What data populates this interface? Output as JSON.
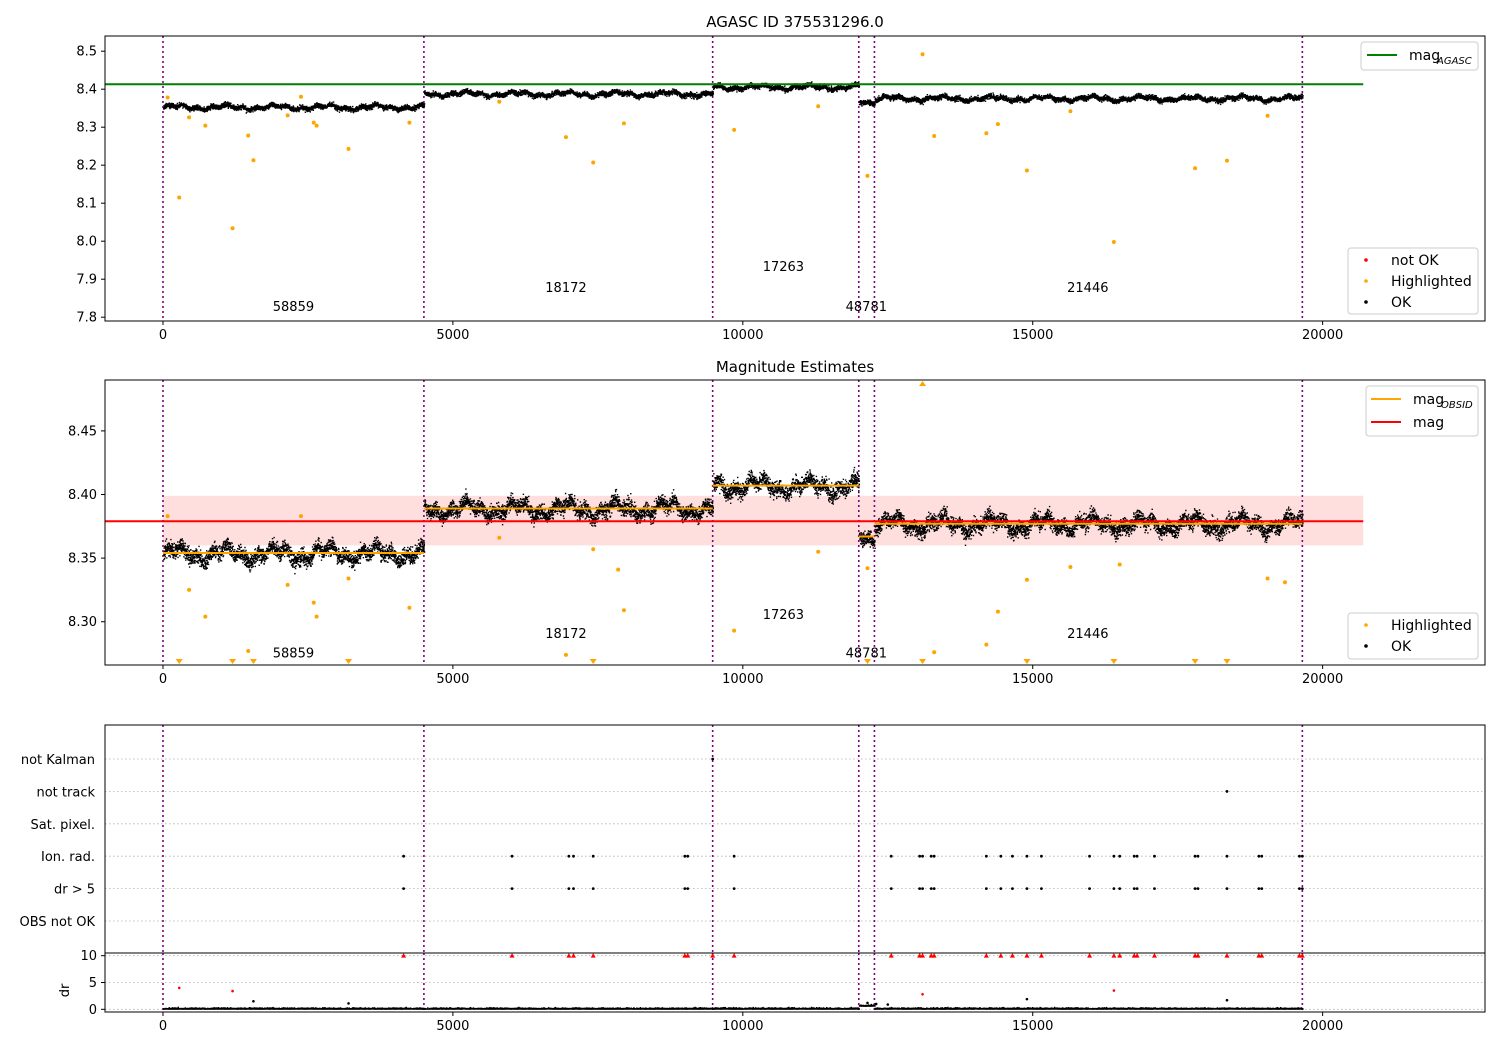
{
  "chart_data": [
    {
      "type": "scatter",
      "title": "AGASC ID 375531296.0",
      "ylim": [
        7.79,
        8.54
      ],
      "xlim": [
        -1000,
        22800
      ],
      "xticks": [
        0,
        5000,
        10000,
        15000,
        20000
      ],
      "yticks": [
        7.8,
        7.9,
        8.0,
        8.1,
        8.2,
        8.3,
        8.4,
        8.5
      ],
      "obsids": [
        {
          "label": "58859",
          "start": 0,
          "end": 4500,
          "label_x": 2250,
          "label_y": 7.83,
          "mean": 8.354
        },
        {
          "label": "18172",
          "start": 4500,
          "end": 9480,
          "label_x": 6950,
          "label_y": 7.88,
          "mean": 8.389
        },
        {
          "label": "17263",
          "start": 9480,
          "end": 12000,
          "label_x": 10700,
          "label_y": 7.935,
          "mean": 8.407
        },
        {
          "label": "48781",
          "start": 12000,
          "end": 12270,
          "label_x": 12130,
          "label_y": 7.83,
          "mean": 8.367
        },
        {
          "label": "21446",
          "start": 12270,
          "end": 19650,
          "label_x": 15950,
          "label_y": 7.88,
          "mean": 8.377
        }
      ],
      "mag_agasc": 8.413,
      "highlighted": [
        [
          80,
          8.378
        ],
        [
          280,
          8.115
        ],
        [
          450,
          8.326
        ],
        [
          730,
          8.304
        ],
        [
          1200,
          8.034
        ],
        [
          1470,
          8.278
        ],
        [
          1560,
          8.213
        ],
        [
          2150,
          8.331
        ],
        [
          2380,
          8.38
        ],
        [
          2600,
          8.312
        ],
        [
          2650,
          8.304
        ],
        [
          3200,
          8.243
        ],
        [
          4250,
          8.312
        ],
        [
          5800,
          8.367
        ],
        [
          6950,
          8.274
        ],
        [
          7420,
          8.207
        ],
        [
          7950,
          8.31
        ],
        [
          9850,
          8.293
        ],
        [
          11300,
          8.355
        ],
        [
          12150,
          8.172
        ],
        [
          13100,
          8.492
        ],
        [
          13300,
          8.277
        ],
        [
          14200,
          8.284
        ],
        [
          14400,
          8.308
        ],
        [
          14900,
          8.186
        ],
        [
          15650,
          8.342
        ],
        [
          16400,
          7.998
        ],
        [
          17800,
          8.192
        ],
        [
          18350,
          8.212
        ],
        [
          19050,
          8.33
        ]
      ],
      "series": [
        {
          "name": "not OK",
          "color": "#ff0000"
        },
        {
          "name": "Highlighted",
          "color": "#ffa500"
        },
        {
          "name": "OK",
          "color": "#000000"
        }
      ],
      "legend_lines": [
        {
          "name": "mag",
          "subscript": "AGASC",
          "color": "#008000"
        }
      ],
      "legend_points": [
        "not OK",
        "Highlighted",
        "OK"
      ]
    },
    {
      "type": "scatter",
      "title": "Magnitude Estimates",
      "ylim": [
        8.266,
        8.49
      ],
      "xlim": [
        -1000,
        22800
      ],
      "xticks": [
        0,
        5000,
        10000,
        15000,
        20000
      ],
      "yticks": [
        8.3,
        8.35,
        8.4,
        8.45
      ],
      "obsids": [
        {
          "label": "58859",
          "start": 0,
          "end": 4500,
          "label_x": 2250,
          "label_y": 8.276,
          "mean": 8.354
        },
        {
          "label": "18172",
          "start": 4500,
          "end": 9480,
          "label_x": 6950,
          "label_y": 8.291,
          "mean": 8.389
        },
        {
          "label": "17263",
          "start": 9480,
          "end": 12000,
          "label_x": 10700,
          "label_y": 8.306,
          "mean": 8.407
        },
        {
          "label": "48781",
          "start": 12000,
          "end": 12270,
          "label_x": 12130,
          "label_y": 8.276,
          "mean": 8.367
        },
        {
          "label": "21446",
          "start": 12270,
          "end": 19650,
          "label_x": 15950,
          "label_y": 8.291,
          "mean": 8.377
        }
      ],
      "mag": 8.379,
      "mag_band": [
        8.36,
        8.399
      ],
      "mag_line_range": [
        0,
        20700
      ],
      "highlighted": [
        [
          80,
          8.383
        ],
        [
          450,
          8.325
        ],
        [
          730,
          8.304
        ],
        [
          1470,
          8.277
        ],
        [
          2150,
          8.329
        ],
        [
          2380,
          8.383
        ],
        [
          2600,
          8.315
        ],
        [
          2650,
          8.304
        ],
        [
          3200,
          8.334
        ],
        [
          4250,
          8.311
        ],
        [
          5800,
          8.366
        ],
        [
          6950,
          8.274
        ],
        [
          7420,
          8.357
        ],
        [
          7950,
          8.309
        ],
        [
          7850,
          8.341
        ],
        [
          9850,
          8.293
        ],
        [
          11300,
          8.355
        ],
        [
          12150,
          8.342
        ],
        [
          13300,
          8.276
        ],
        [
          14200,
          8.282
        ],
        [
          14400,
          8.308
        ],
        [
          14900,
          8.333
        ],
        [
          15650,
          8.343
        ],
        [
          16500,
          8.345
        ],
        [
          19050,
          8.334
        ],
        [
          19350,
          8.331
        ]
      ],
      "offscale_below": [
        280,
        1200,
        1560,
        3200,
        7420,
        12150,
        13100,
        14900,
        16400,
        17800,
        18350
      ],
      "offscale_above": [
        13100
      ],
      "series": [
        {
          "name": "Highlighted",
          "color": "#ffa500"
        },
        {
          "name": "OK",
          "color": "#000000"
        }
      ],
      "legend_lines": [
        {
          "name": "mag",
          "subscript": "OBSID",
          "color": "#ffa500"
        },
        {
          "name": "mag",
          "subscript": "",
          "color": "#ff0000"
        }
      ],
      "legend_points": [
        "Highlighted",
        "OK"
      ]
    },
    {
      "type": "scatter",
      "xlim": [
        -1000,
        22800
      ],
      "xticks": [
        0,
        5000,
        10000,
        15000,
        20000
      ],
      "flag_categories": [
        "not Kalman",
        "not track",
        "Sat. pixel.",
        "Ion. rad.",
        "dr > 5",
        "OBS not OK"
      ],
      "flag_points": {
        "not Kalman": [
          9480
        ],
        "not track": [
          18350
        ],
        "Sat. pixel.": [],
        "Ion. rad.": [
          4150,
          6020,
          7000,
          7080,
          7420,
          9000,
          9050,
          9850,
          12560,
          13050,
          13100,
          13250,
          13300,
          14200,
          14450,
          14650,
          14900,
          15150,
          15980,
          16400,
          16500,
          16750,
          16800,
          17100,
          17800,
          17850,
          18350,
          18900,
          18950,
          19600,
          19650
        ],
        "dr > 5": [
          4150,
          6020,
          7000,
          7080,
          7420,
          9000,
          9050,
          9850,
          12560,
          13050,
          13100,
          13250,
          13300,
          14200,
          14450,
          14650,
          14900,
          15150,
          15980,
          16400,
          16500,
          16750,
          16800,
          17100,
          17800,
          17850,
          18350,
          18900,
          18950,
          19600,
          19650
        ],
        "OBS not OK": []
      },
      "dr_ylabel": "dr",
      "dr_ylim": [
        -0.5,
        10.5
      ],
      "dr_yticks": [
        0,
        5,
        10
      ],
      "dr_clipped_x": [
        4150,
        6020,
        7000,
        7080,
        7420,
        9000,
        9050,
        9480,
        9850,
        12560,
        13050,
        13100,
        13250,
        13300,
        14200,
        14450,
        14650,
        14900,
        15150,
        15980,
        16400,
        16500,
        16750,
        16800,
        17100,
        17800,
        17850,
        18350,
        18900,
        18950,
        19600,
        19650
      ],
      "dr_red": [
        [
          280,
          4.0
        ],
        [
          1200,
          3.4
        ],
        [
          13100,
          2.8
        ],
        [
          16400,
          3.5
        ]
      ],
      "dr_black": [
        [
          1560,
          1.5
        ],
        [
          3200,
          1.1
        ],
        [
          12150,
          1.2
        ],
        [
          14900,
          1.9
        ],
        [
          18350,
          1.7
        ],
        [
          12300,
          1.0
        ],
        [
          12500,
          0.9
        ]
      ]
    }
  ]
}
